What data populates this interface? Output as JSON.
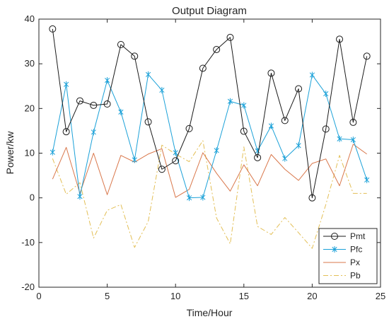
{
  "chart_data": {
    "type": "line",
    "title": "Output Diagram",
    "xlabel": "Time/Hour",
    "ylabel": "Power/kw",
    "xlim": [
      0,
      25
    ],
    "ylim": [
      -20,
      40
    ],
    "xticks": [
      0,
      5,
      10,
      15,
      20,
      25
    ],
    "yticks": [
      -20,
      -10,
      0,
      10,
      20,
      30,
      40
    ],
    "grid": false,
    "legend_position": "bottom-right",
    "x": [
      1,
      2,
      3,
      4,
      5,
      6,
      7,
      8,
      9,
      10,
      11,
      12,
      13,
      14,
      15,
      16,
      17,
      18,
      19,
      20,
      21,
      22,
      23,
      24
    ],
    "series": [
      {
        "name": "Pmt",
        "color": "#1a1a1a",
        "line_style": "solid",
        "marker": "circle",
        "values": [
          37.8,
          14.8,
          21.7,
          20.7,
          21.0,
          34.3,
          31.7,
          17.0,
          6.4,
          8.3,
          15.5,
          29.0,
          33.2,
          35.9,
          14.9,
          9.0,
          27.9,
          17.3,
          24.4,
          0.0,
          15.4,
          35.5,
          16.9,
          31.7
        ]
      },
      {
        "name": "Pfc",
        "color": "#1ba1d8",
        "line_style": "solid",
        "marker": "asterisk",
        "values": [
          10.2,
          25.4,
          0.3,
          14.7,
          26.3,
          19.2,
          8.5,
          27.6,
          24.1,
          10.1,
          0.0,
          0.1,
          10.6,
          21.6,
          20.7,
          10.5,
          16.1,
          8.8,
          11.7,
          27.5,
          23.3,
          13.2,
          13.0,
          4.0
        ]
      },
      {
        "name": "Px",
        "color": "#d9774b",
        "line_style": "solid",
        "marker": "none",
        "values": [
          4.2,
          11.3,
          1.0,
          10.0,
          0.7,
          9.5,
          8.0,
          9.8,
          11.0,
          0.1,
          1.9,
          10.1,
          5.5,
          1.5,
          7.4,
          2.7,
          9.7,
          6.4,
          3.9,
          7.7,
          8.7,
          2.7,
          12.0,
          9.8
        ]
      },
      {
        "name": "Pb",
        "color": "#e3bf56",
        "line_style": "dashdot",
        "marker": "none",
        "values": [
          8.8,
          0.8,
          3.4,
          -9.0,
          -2.8,
          -1.5,
          -11.1,
          -5.3,
          11.8,
          9.8,
          8.1,
          12.8,
          -4.5,
          -10.3,
          11.4,
          -6.4,
          -8.2,
          -4.4,
          -7.8,
          -11.3,
          -1.5,
          9.5,
          1.0,
          1.0
        ]
      }
    ]
  }
}
